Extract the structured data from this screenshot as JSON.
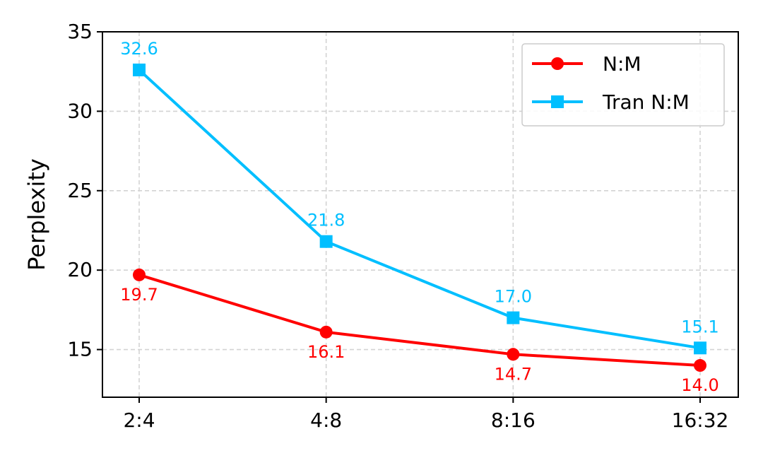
{
  "chart_data": {
    "type": "line",
    "categories": [
      "2:4",
      "4:8",
      "8:16",
      "16:32"
    ],
    "ylabel": "Perplexity",
    "xlabel": "",
    "title": "",
    "ylim": [
      12,
      35
    ],
    "yticks": [
      15,
      20,
      25,
      30,
      35
    ],
    "grid": true,
    "legend_position": "top-right",
    "series": [
      {
        "name": "N:M",
        "values": [
          19.7,
          16.1,
          14.7,
          14.0
        ],
        "labels": [
          "19.7",
          "16.1",
          "14.7",
          "14.0"
        ],
        "color": "#ff0000",
        "marker": "circle",
        "label_position": "below"
      },
      {
        "name": "Tran N:M",
        "values": [
          32.6,
          21.8,
          17.0,
          15.1
        ],
        "labels": [
          "32.6",
          "21.8",
          "17.0",
          "15.1"
        ],
        "color": "#00bfff",
        "marker": "square",
        "label_position": "above"
      }
    ]
  }
}
